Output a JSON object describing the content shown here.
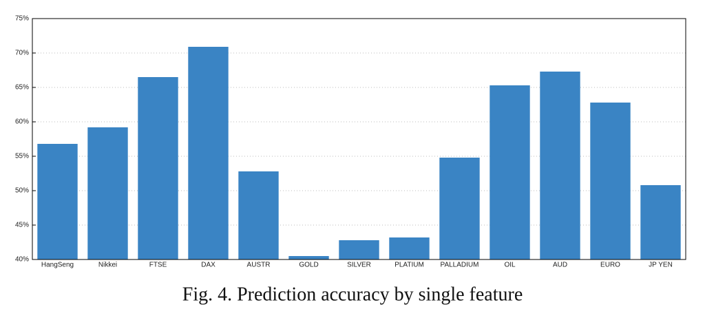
{
  "chart_data": {
    "type": "bar",
    "caption": "Fig. 4.   Prediction accuracy by single feature",
    "categories": [
      "HangSeng",
      "Nikkei",
      "FTSE",
      "DAX",
      "AUSTR",
      "GOLD",
      "SILVER",
      "PLATIUM",
      "PALLADIUM",
      "OIL",
      "AUD",
      "EURO",
      "JP YEN"
    ],
    "values": [
      56.8,
      59.2,
      66.5,
      70.9,
      52.8,
      40.5,
      42.8,
      43.2,
      54.8,
      65.3,
      67.3,
      62.8,
      50.8
    ],
    "color": "#3a84c4",
    "ylim": [
      40,
      75
    ],
    "yticks": [
      {
        "value": 40,
        "label": "40%"
      },
      {
        "value": 45,
        "label": "45%"
      },
      {
        "value": 50,
        "label": "50%"
      },
      {
        "value": 55,
        "label": "55%"
      },
      {
        "value": 60,
        "label": "60%"
      },
      {
        "value": 65,
        "label": "65%"
      },
      {
        "value": 70,
        "label": "70%"
      },
      {
        "value": 75,
        "label": "75%"
      }
    ],
    "grid": true
  }
}
